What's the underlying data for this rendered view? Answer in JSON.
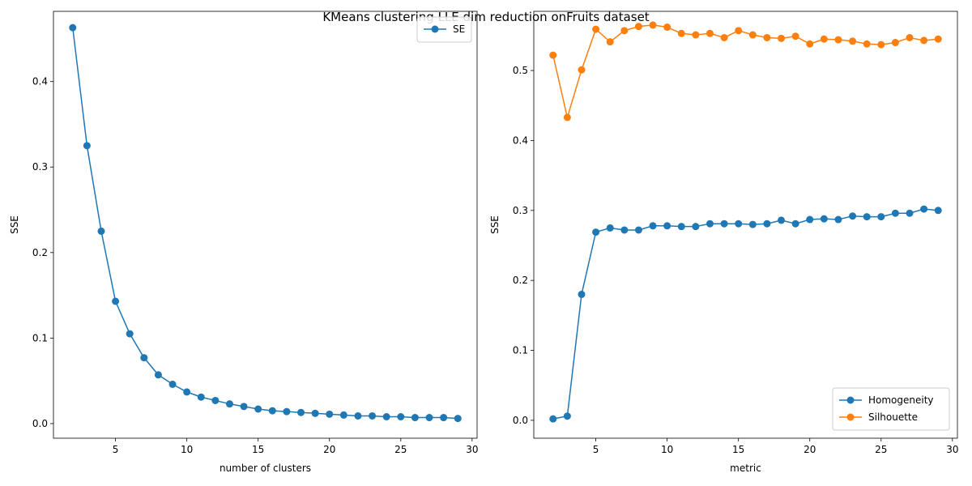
{
  "suptitle": "KMeans clustering LLE dim reduction onFruits dataset",
  "chart_data": [
    {
      "type": "line",
      "xlabel": "number of clusters",
      "ylabel": "SSE",
      "xlim": [
        0.65,
        30.35
      ],
      "ylim": [
        -0.0171,
        0.4821
      ],
      "xticks": [
        5,
        10,
        15,
        20,
        25,
        30
      ],
      "yticks": [
        0.0,
        0.1,
        0.2,
        0.3,
        0.4
      ],
      "legend_position": "upper-right",
      "x": [
        2,
        3,
        4,
        5,
        6,
        7,
        8,
        9,
        10,
        11,
        12,
        13,
        14,
        15,
        16,
        17,
        18,
        19,
        20,
        21,
        22,
        23,
        24,
        25,
        26,
        27,
        28,
        29
      ],
      "series": [
        {
          "name": "SE",
          "color": "#1f77b4",
          "values": [
            0.463,
            0.325,
            0.225,
            0.143,
            0.105,
            0.077,
            0.057,
            0.046,
            0.037,
            0.031,
            0.027,
            0.023,
            0.02,
            0.017,
            0.015,
            0.014,
            0.013,
            0.012,
            0.011,
            0.01,
            0.009,
            0.009,
            0.008,
            0.008,
            0.007,
            0.007,
            0.007,
            0.006
          ]
        }
      ]
    },
    {
      "type": "line",
      "xlabel": "metric",
      "ylabel": "SSE",
      "xlim": [
        0.65,
        30.35
      ],
      "ylim": [
        -0.0256,
        0.5846
      ],
      "xticks": [
        5,
        10,
        15,
        20,
        25,
        30
      ],
      "yticks": [
        0.0,
        0.1,
        0.2,
        0.3,
        0.4,
        0.5
      ],
      "legend_position": "lower-right",
      "x": [
        2,
        3,
        4,
        5,
        6,
        7,
        8,
        9,
        10,
        11,
        12,
        13,
        14,
        15,
        16,
        17,
        18,
        19,
        20,
        21,
        22,
        23,
        24,
        25,
        26,
        27,
        28,
        29
      ],
      "series": [
        {
          "name": "Homogeneity",
          "color": "#1f77b4",
          "values": [
            0.002,
            0.006,
            0.18,
            0.269,
            0.275,
            0.272,
            0.272,
            0.278,
            0.278,
            0.277,
            0.277,
            0.281,
            0.281,
            0.281,
            0.28,
            0.281,
            0.286,
            0.281,
            0.287,
            0.288,
            0.287,
            0.292,
            0.291,
            0.291,
            0.296,
            0.296,
            0.302,
            0.3
          ]
        },
        {
          "name": "Silhouette",
          "color": "#ff7f0e",
          "values": [
            0.522,
            0.433,
            0.501,
            0.559,
            0.541,
            0.557,
            0.563,
            0.565,
            0.562,
            0.553,
            0.551,
            0.553,
            0.547,
            0.557,
            0.551,
            0.547,
            0.546,
            0.549,
            0.538,
            0.545,
            0.544,
            0.542,
            0.538,
            0.537,
            0.54,
            0.547,
            0.543,
            0.545
          ]
        }
      ]
    }
  ]
}
